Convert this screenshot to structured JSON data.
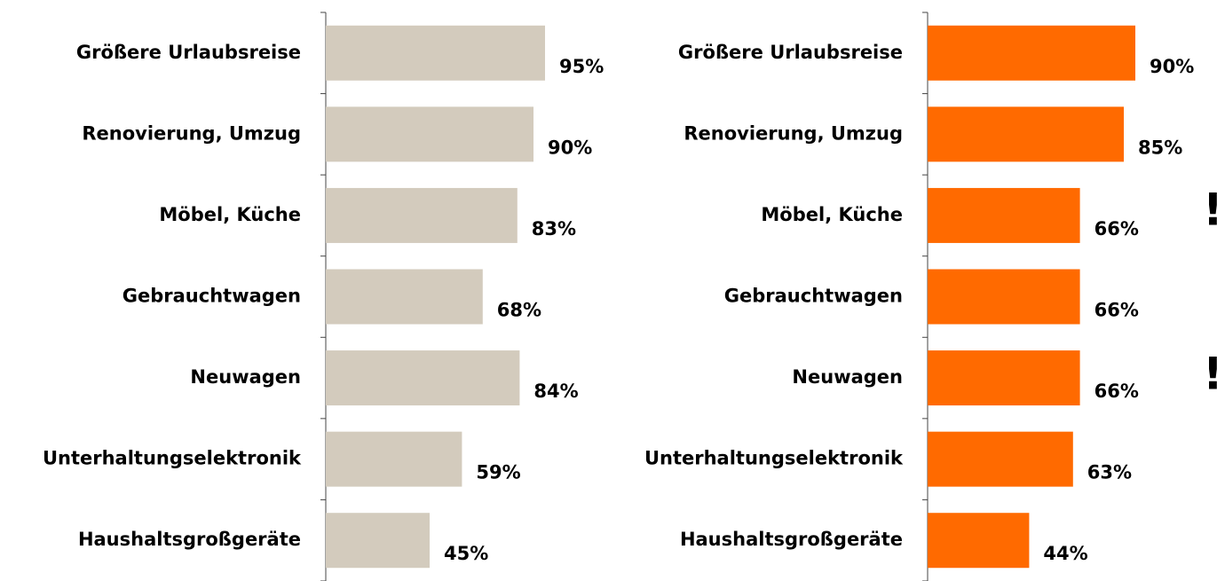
{
  "chart_data": [
    {
      "type": "bar",
      "orientation": "horizontal",
      "color": "#d3cbbd",
      "xlim": [
        0,
        100
      ],
      "categories": [
        "Größere Urlaubsreise",
        "Renovierung, Umzug",
        "Möbel, Küche",
        "Gebrauchtwagen",
        "Neuwagen",
        "Unterhaltungselektronik",
        "Haushaltsgroßgeräte"
      ],
      "values": [
        95,
        90,
        83,
        68,
        84,
        59,
        45
      ],
      "value_labels": [
        "95%",
        "90%",
        "83%",
        "68%",
        "84%",
        "59%",
        "45%"
      ]
    },
    {
      "type": "bar",
      "orientation": "horizontal",
      "color": "#ff6a00",
      "xlim": [
        0,
        100
      ],
      "categories": [
        "Größere Urlaubsreise",
        "Renovierung, Umzug",
        "Möbel, Küche",
        "Gebrauchtwagen",
        "Neuwagen",
        "Unterhaltungselektronik",
        "Haushaltsgroßgeräte"
      ],
      "values": [
        90,
        85,
        66,
        66,
        66,
        63,
        44
      ],
      "value_labels": [
        "90%",
        "85%",
        "66%",
        "66%",
        "66%",
        "63%",
        "44%"
      ],
      "annotations": [
        "!",
        "!"
      ]
    }
  ]
}
